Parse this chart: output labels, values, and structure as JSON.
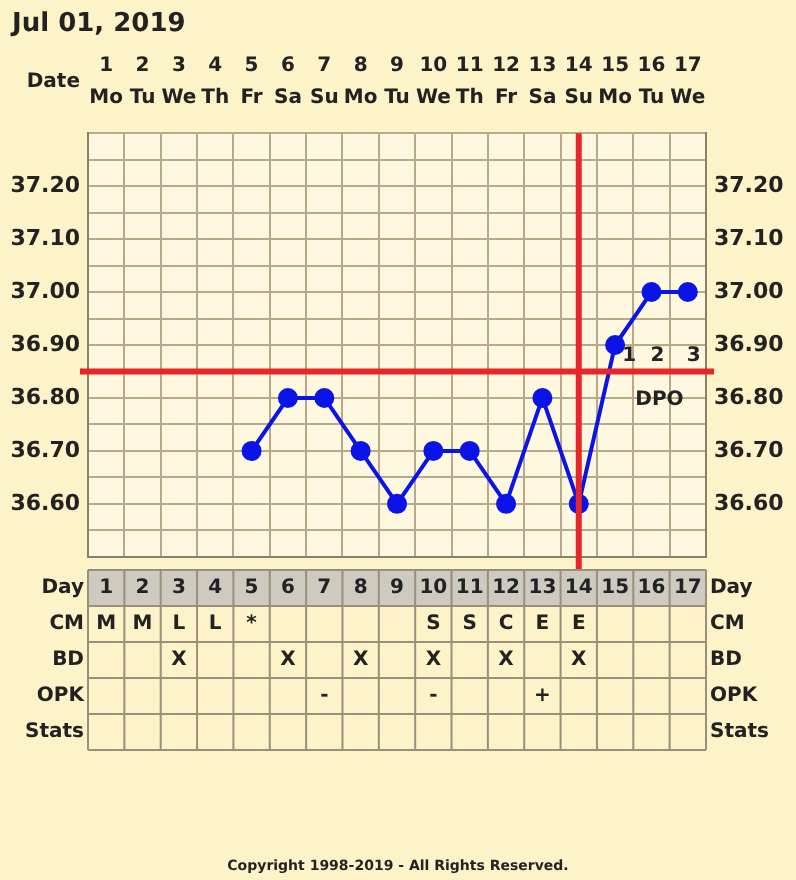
{
  "chart_data": [
    {
      "type": "heatmap",
      "title": "Jul 01, 2019",
      "categories": [
        "1",
        "2",
        "3",
        "4",
        "5",
        "6",
        "7",
        "8",
        "9",
        "10",
        "11",
        "12",
        "13",
        "14",
        "15",
        "16",
        "17"
      ],
      "y_categories": [
        "Date"
      ],
      "cells": [
        [
          null,
          null,
          null,
          null,
          null,
          null,
          null,
          null,
          null,
          null,
          null,
          null,
          null,
          null,
          null,
          null,
          null
        ]
      ],
      "cell_labels": [
        [
          "Mo",
          "Tu",
          "We",
          "Th",
          "Fr",
          "Sa",
          "Su",
          "Mo",
          "Tu",
          "We",
          "Th",
          "Fr",
          "Sa",
          "Su",
          "Mo",
          "Tu",
          "We"
        ]
      ]
    },
    {
      "type": "line",
      "categories": [
        "1",
        "2",
        "3",
        "4",
        "5",
        "6",
        "7",
        "8",
        "9",
        "10",
        "11",
        "12",
        "13",
        "14",
        "15",
        "16",
        "17"
      ],
      "series": [
        {
          "color": "#0a14e6",
          "values": [
            null,
            null,
            null,
            null,
            36.7,
            36.8,
            36.8,
            36.7,
            36.6,
            36.7,
            36.7,
            36.6,
            36.8,
            36.6,
            36.9,
            37.0,
            37.0
          ]
        }
      ],
      "marker": "circle",
      "line_style": "solid",
      "grid": true,
      "tick_labels": "y",
      "ylim": [
        36.5,
        37.3
      ],
      "yticks": [
        {
          "value": 36.5,
          "label": null
        },
        {
          "value": 36.55,
          "label": null
        },
        {
          "value": 36.6,
          "label": "36.60"
        },
        {
          "value": 36.65,
          "label": null
        },
        {
          "value": 36.7,
          "label": "36.70"
        },
        {
          "value": 36.75,
          "label": null
        },
        {
          "value": 36.8,
          "label": "36.80"
        },
        {
          "value": 36.9,
          "label": "36.90"
        },
        {
          "value": 36.95,
          "label": null
        },
        {
          "value": 37.0,
          "label": "37.00"
        },
        {
          "value": 37.05,
          "label": null
        },
        {
          "value": 37.1,
          "label": "37.10"
        },
        {
          "value": 37.15,
          "label": null
        },
        {
          "value": 37.2,
          "label": "37.20"
        },
        {
          "value": 37.25,
          "label": null
        },
        {
          "value": 37.3,
          "label": null
        }
      ],
      "y2lim": [
        36.5,
        37.3
      ],
      "y2ticks": [
        {
          "value": 36.6,
          "label": "36.60"
        },
        {
          "value": 36.7,
          "label": "36.70"
        },
        {
          "value": 36.8,
          "label": "36.80"
        },
        {
          "value": 36.9,
          "label": "36.90"
        },
        {
          "value": 37.0,
          "label": "37.00"
        },
        {
          "value": 37.1,
          "label": "37.10"
        },
        {
          "value": 37.2,
          "label": "37.20"
        }
      ],
      "ref_lines": [
        {
          "axis": "y",
          "value": 36.85,
          "color": "#e8262a"
        },
        {
          "axis": "x",
          "value": "14",
          "color": "#e8262a"
        }
      ],
      "annotations": [
        "1",
        "2",
        "3",
        "DPO"
      ]
    },
    {
      "type": "heatmap",
      "xlabel": "Day",
      "categories": [
        "1",
        "2",
        "3",
        "4",
        "5",
        "6",
        "7",
        "8",
        "9",
        "10",
        "11",
        "12",
        "13",
        "14",
        "15",
        "16",
        "17"
      ],
      "y_categories": [
        "CM",
        "BD",
        "OPK",
        "Stats"
      ],
      "y2_categories": [
        "CM",
        "BD",
        "OPK",
        "Stats"
      ],
      "cells": [
        [
          null,
          null,
          null,
          null,
          null,
          null,
          null,
          null,
          null,
          null,
          null,
          null,
          null,
          null,
          null,
          null,
          null
        ],
        [
          null,
          null,
          null,
          null,
          null,
          null,
          null,
          null,
          null,
          null,
          null,
          null,
          null,
          null,
          null,
          null,
          null
        ],
        [
          null,
          null,
          null,
          null,
          null,
          null,
          null,
          null,
          null,
          null,
          null,
          null,
          null,
          null,
          null,
          null,
          null
        ],
        [
          null,
          null,
          null,
          null,
          null,
          null,
          null,
          null,
          null,
          null,
          null,
          null,
          null,
          null,
          null,
          null,
          null
        ]
      ],
      "cell_labels": [
        [
          "M",
          "M",
          "L",
          "L",
          "*",
          null,
          null,
          null,
          null,
          "S",
          "S",
          "C",
          "E",
          "E",
          null,
          null,
          null
        ],
        [
          null,
          null,
          "X",
          null,
          null,
          "X",
          null,
          "X",
          null,
          "X",
          null,
          "X",
          null,
          "X",
          null,
          null,
          null
        ],
        [
          null,
          null,
          null,
          null,
          null,
          null,
          "-",
          null,
          null,
          "-",
          null,
          null,
          "+",
          null,
          null,
          null,
          null
        ],
        [
          null,
          null,
          null,
          null,
          null,
          null,
          null,
          null,
          null,
          null,
          null,
          null,
          null,
          null,
          null,
          null,
          null
        ]
      ],
      "annotations": [
        "Copyright 1998-2019 - All Rights Reserved."
      ]
    }
  ]
}
